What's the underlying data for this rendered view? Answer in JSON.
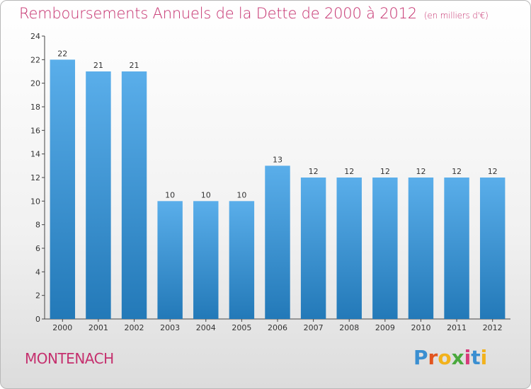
{
  "title": "Remboursements Annuels de la Dette de 2000 à 2012",
  "unit": "(en milliers d'€)",
  "city": "MONTENACH",
  "logo": {
    "text": "Proxiti",
    "letters": [
      "P",
      "r",
      "o",
      "x",
      "i",
      "t",
      "i"
    ],
    "colors": [
      "#3a8fd1",
      "#e2551f",
      "#f2b21c",
      "#4aa93d",
      "#d73a7a",
      "#3a8fd1",
      "#f2b21c"
    ]
  },
  "colors": {
    "title": "#c5306e",
    "bar_light": "#5aaeea",
    "bar_dark": "#2379b8"
  },
  "chart_data": {
    "type": "bar",
    "title": "Remboursements Annuels de la Dette de 2000 à 2012",
    "subtitle": "(en milliers d'€)",
    "categories": [
      "2000",
      "2001",
      "2002",
      "2003",
      "2004",
      "2005",
      "2006",
      "2007",
      "2008",
      "2009",
      "2010",
      "2011",
      "2012"
    ],
    "values": [
      22,
      21,
      21,
      10,
      10,
      10,
      13,
      12,
      12,
      12,
      12,
      12,
      12
    ],
    "ylim": [
      0,
      24
    ],
    "yticks": [
      0,
      2,
      4,
      6,
      8,
      10,
      12,
      14,
      16,
      18,
      20,
      22,
      24
    ],
    "xlabel": "",
    "ylabel": "",
    "grid": false,
    "data_labels": true
  }
}
